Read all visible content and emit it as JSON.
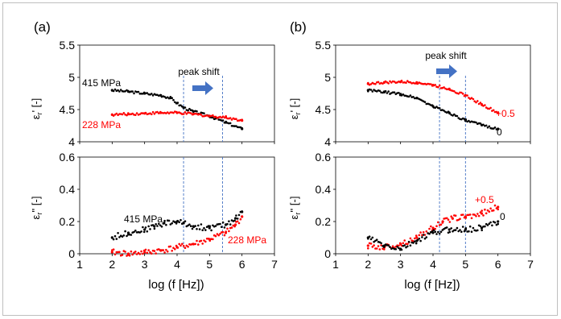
{
  "panels": [
    {
      "label": "(a)",
      "xlabel": "log (f [Hz])",
      "peak_label": "peak shift",
      "top": {
        "ylabel_symbol": "ε",
        "ylabel_sub": "r",
        "ylabel_suffix": "' [-]",
        "yticks": [
          "5.5",
          "5",
          "4.5",
          "4"
        ],
        "series": [
          {
            "name": "415 MPa",
            "color": "#000000"
          },
          {
            "name": "228 MPa",
            "color": "#ff0000"
          }
        ]
      },
      "bottom": {
        "ylabel_symbol": "ε",
        "ylabel_sub": "r",
        "ylabel_suffix": "'' [-]",
        "yticks": [
          "0.6",
          "0.4",
          "0.2",
          "0"
        ],
        "series": [
          {
            "name": "415 MPa",
            "color": "#000000"
          },
          {
            "name": "228 MPa",
            "color": "#ff0000"
          }
        ]
      },
      "xticks": [
        "1",
        "2",
        "3",
        "4",
        "5",
        "6",
        "7"
      ]
    },
    {
      "label": "(b)",
      "xlabel": "log (f [Hz])",
      "peak_label": "peak shift",
      "top": {
        "ylabel_symbol": "ε",
        "ylabel_sub": "r",
        "ylabel_suffix": "' [-]",
        "yticks": [
          "5.5",
          "5",
          "4.5",
          "4"
        ],
        "series": [
          {
            "name": "+0.5",
            "color": "#ff0000"
          },
          {
            "name": "0",
            "color": "#000000"
          }
        ]
      },
      "bottom": {
        "ylabel_symbol": "ε",
        "ylabel_sub": "r",
        "ylabel_suffix": "'' [-]",
        "yticks": [
          "0.6",
          "0.4",
          "0.2",
          "0"
        ],
        "series": [
          {
            "name": "+0.5",
            "color": "#ff0000"
          },
          {
            "name": "0",
            "color": "#000000"
          }
        ]
      },
      "xticks": [
        "1",
        "2",
        "3",
        "4",
        "5",
        "6",
        "7"
      ]
    }
  ],
  "chart_data": [
    {
      "type": "scatter",
      "panel": "(a) top",
      "ylabel": "εr' [-]",
      "xlabel": "",
      "xlim": [
        1,
        7
      ],
      "ylim": [
        4,
        5.5
      ],
      "grid": false,
      "peak_lines_x": [
        4.2,
        5.4
      ],
      "series": [
        {
          "name": "415 MPa",
          "color": "#000000",
          "x": [
            2.0,
            2.5,
            3.0,
            3.5,
            3.8,
            4.0,
            4.2,
            4.5,
            5.0,
            5.5,
            6.0
          ],
          "y": [
            4.8,
            4.78,
            4.75,
            4.72,
            4.68,
            4.6,
            4.53,
            4.47,
            4.4,
            4.3,
            4.2
          ]
        },
        {
          "name": "228 MPa",
          "color": "#ff0000",
          "x": [
            2.0,
            2.5,
            3.0,
            3.5,
            4.0,
            4.5,
            5.0,
            5.5,
            6.0
          ],
          "y": [
            4.42,
            4.43,
            4.44,
            4.45,
            4.45,
            4.43,
            4.4,
            4.38,
            4.33
          ]
        }
      ]
    },
    {
      "type": "scatter",
      "panel": "(a) bottom",
      "ylabel": "εr'' [-]",
      "xlabel": "log (f [Hz])",
      "xlim": [
        1,
        7
      ],
      "ylim": [
        0,
        0.6
      ],
      "grid": false,
      "peak_lines_x": [
        4.2,
        5.4
      ],
      "series": [
        {
          "name": "415 MPa",
          "color": "#000000",
          "x": [
            2.0,
            2.5,
            3.0,
            3.3,
            3.6,
            4.0,
            4.2,
            4.5,
            5.0,
            5.5,
            5.8,
            6.0
          ],
          "y": [
            0.1,
            0.13,
            0.15,
            0.17,
            0.19,
            0.2,
            0.19,
            0.17,
            0.16,
            0.18,
            0.22,
            0.26
          ]
        },
        {
          "name": "228 MPa",
          "color": "#ff0000",
          "x": [
            2.0,
            2.5,
            3.0,
            3.5,
            4.0,
            4.5,
            5.0,
            5.5,
            5.8,
            6.0
          ],
          "y": [
            0.01,
            0.0,
            0.01,
            0.02,
            0.04,
            0.06,
            0.09,
            0.13,
            0.18,
            0.23
          ]
        }
      ]
    },
    {
      "type": "scatter",
      "panel": "(b) top",
      "ylabel": "εr' [-]",
      "xlabel": "",
      "xlim": [
        1,
        7
      ],
      "ylim": [
        4,
        5.5
      ],
      "grid": false,
      "peak_lines_x": [
        4.2,
        5.0
      ],
      "series": [
        {
          "name": "+0.5",
          "color": "#ff0000",
          "x": [
            2.0,
            2.5,
            3.0,
            3.5,
            4.0,
            4.5,
            5.0,
            5.5,
            6.0
          ],
          "y": [
            4.9,
            4.92,
            4.93,
            4.92,
            4.88,
            4.82,
            4.72,
            4.58,
            4.45
          ]
        },
        {
          "name": "0",
          "color": "#000000",
          "x": [
            2.0,
            2.5,
            3.0,
            3.5,
            4.0,
            4.5,
            5.0,
            5.5,
            6.0
          ],
          "y": [
            4.8,
            4.77,
            4.74,
            4.68,
            4.55,
            4.45,
            4.33,
            4.26,
            4.2
          ]
        }
      ]
    },
    {
      "type": "scatter",
      "panel": "(b) bottom",
      "ylabel": "εr'' [-]",
      "xlabel": "log (f [Hz])",
      "xlim": [
        1,
        7
      ],
      "ylim": [
        0,
        0.6
      ],
      "grid": false,
      "peak_lines_x": [
        4.2,
        5.0
      ],
      "series": [
        {
          "name": "+0.5",
          "color": "#ff0000",
          "x": [
            2.0,
            2.5,
            3.0,
            3.5,
            4.0,
            4.3,
            4.6,
            5.0,
            5.5,
            6.0
          ],
          "y": [
            0.05,
            0.04,
            0.06,
            0.1,
            0.16,
            0.2,
            0.22,
            0.23,
            0.25,
            0.29
          ]
        },
        {
          "name": "0",
          "color": "#000000",
          "x": [
            2.0,
            2.5,
            3.0,
            3.5,
            4.0,
            4.5,
            5.0,
            5.5,
            6.0
          ],
          "y": [
            0.1,
            0.05,
            0.03,
            0.08,
            0.13,
            0.15,
            0.15,
            0.16,
            0.2
          ]
        }
      ]
    }
  ]
}
